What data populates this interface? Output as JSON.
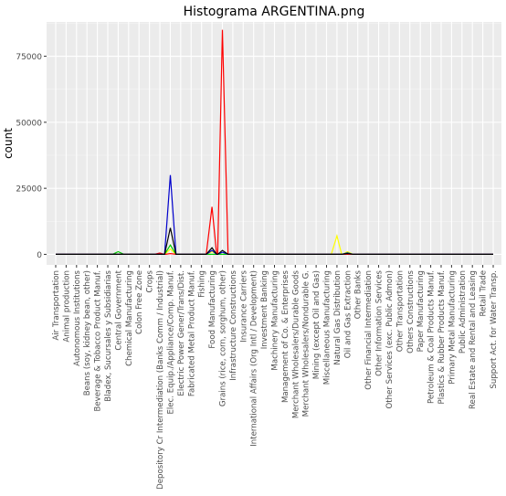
{
  "chart_data": {
    "type": "line",
    "title": "Histograma ARGENTINA.png",
    "xlabel": "",
    "ylabel": "count",
    "ylim": [
      -4000,
      88000
    ],
    "y_ticks": [
      0,
      25000,
      50000,
      75000
    ],
    "y_tick_labels": [
      "0",
      "25000",
      "50000",
      "75000"
    ],
    "grid": true,
    "legend": "none",
    "categories": [
      "Air Transportation",
      "Animal production",
      "Autonomous Institutions",
      "Beans (soy, kidney bean, other)",
      "Beverage & Tobacco Product Manuf.",
      "Bladex, Sucursales y Subsidiarias",
      "Central Government",
      "Chemical Manufacturing",
      "Colon Free Zone",
      "Crops",
      "Depository Cr Intermediation (Banks Comm / Industrial)",
      "Elec. Equip./Appliance/Comp. Manuf.",
      "Electric Power Gener/Trans/Dist.",
      "Fabricated Metal Product Manuf.",
      "Fishing",
      "Food Manufacturing",
      "Grains (rice, corn, sorghum, other)",
      "Infrastructure Constructions",
      "Insurance Carriers",
      "International Affairs (Org Intl / Development)",
      "Investment Banking",
      "Machinery Manufacturing",
      "Management of Co. & Enterprises",
      "Merchant Wholesalers/Durable Goods",
      "Merchant Wholesalers/Nondurable G.",
      "Mining (except Oil and Gas)",
      "Miscellaneous Manufacturing",
      "Natural Gas Distribution",
      "Oil and Gas Extraction",
      "Other Banks",
      "Other Financial Intermediation",
      "Other Information Services",
      "Other Services (exc. Public Admon)",
      "Other Transportation",
      "Others Constructions",
      "Paper Manufacturing",
      "Petroleum & Coal Products Manuf.",
      "Plastics & Rubber Products Manuf.",
      "Primary Metal Manufacturing",
      "Public Administration",
      "Real Estate and Rental and Leasing",
      "Retail Trade",
      "Support Act. for Water Transp."
    ],
    "series": [
      {
        "color": "#ff0000",
        "values": [
          0,
          0,
          0,
          0,
          0,
          0,
          0,
          0,
          0,
          0,
          0,
          0,
          0,
          0,
          0,
          0,
          0,
          0,
          0,
          0,
          0,
          0,
          0,
          0,
          0,
          0,
          0,
          0,
          0,
          0,
          0,
          0,
          0,
          0,
          0,
          0,
          0,
          0,
          0,
          0,
          0,
          0,
          0
        ],
        "peaks": [
          {
            "index": 10,
            "value": 500
          },
          {
            "index": 15,
            "value": 18000
          },
          {
            "index": 16,
            "value": 85000
          },
          {
            "index": 11,
            "value": 300
          }
        ]
      },
      {
        "color": "#0000cc",
        "peaks": [
          {
            "index": 11,
            "value": 30000
          },
          {
            "index": 15,
            "value": 1500
          },
          {
            "index": 16,
            "value": 800
          },
          {
            "index": 28,
            "value": 500
          }
        ]
      },
      {
        "color": "#000000",
        "peaks": [
          {
            "index": 11,
            "value": 10000
          },
          {
            "index": 15,
            "value": 2500
          },
          {
            "index": 16,
            "value": 1500
          },
          {
            "index": 28,
            "value": 300
          }
        ]
      },
      {
        "color": "#00cc00",
        "peaks": [
          {
            "index": 6,
            "value": 1000
          },
          {
            "index": 11,
            "value": 3500
          },
          {
            "index": 28,
            "value": 600
          }
        ]
      },
      {
        "color": "#ffff00",
        "peaks": [
          {
            "index": 11,
            "value": 2000
          },
          {
            "index": 15,
            "value": 1000
          },
          {
            "index": 27,
            "value": 7000
          },
          {
            "index": 28,
            "value": 1000
          }
        ]
      }
    ]
  }
}
